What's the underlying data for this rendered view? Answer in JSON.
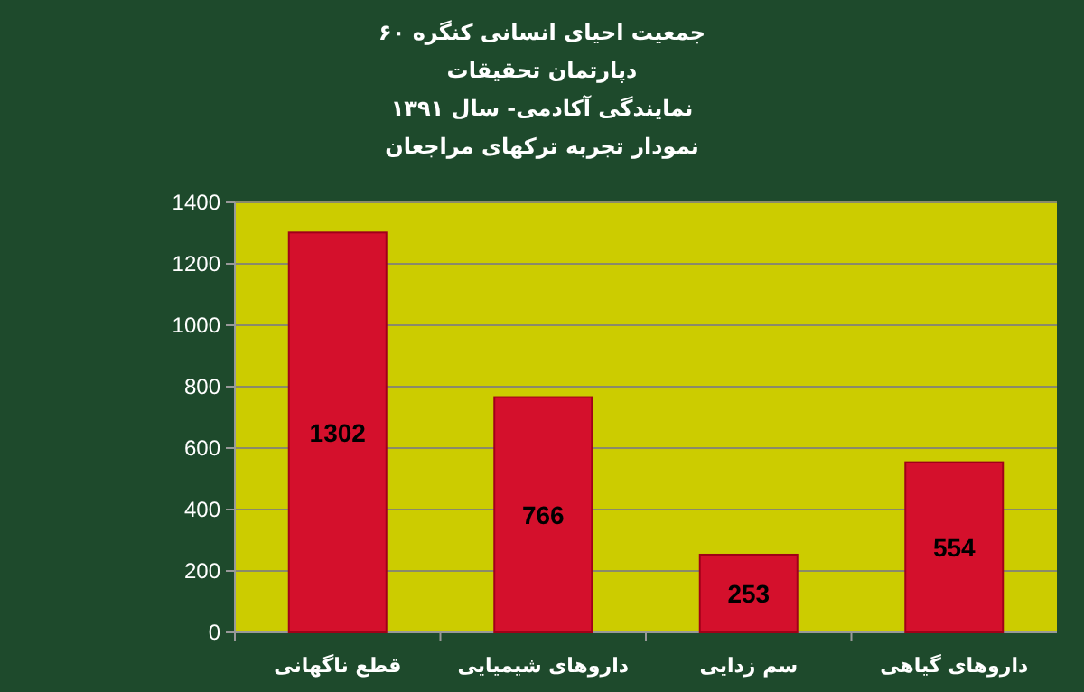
{
  "chart_data": {
    "type": "bar",
    "title": "جمعیت احیای انسانی کنگره ۶۰",
    "subtitle": "نمودار تجربه ترکهای مراجعان",
    "annotations": [
      "دپارتمان تحقیقات",
      "نمایندگی آکادمی- سال ۱۳۹۱"
    ],
    "categories": [
      "قطع ناگهانی",
      "داروهای شیمیایی",
      "سم زدایی",
      "داروهای گیاهی"
    ],
    "values": [
      1302,
      766,
      253,
      554
    ],
    "color": "#d4102c",
    "data_labels": true,
    "ylim": [
      0,
      1400
    ],
    "yticks": [
      0,
      200,
      400,
      600,
      800,
      1000,
      1200,
      1400
    ],
    "grid": "y"
  }
}
